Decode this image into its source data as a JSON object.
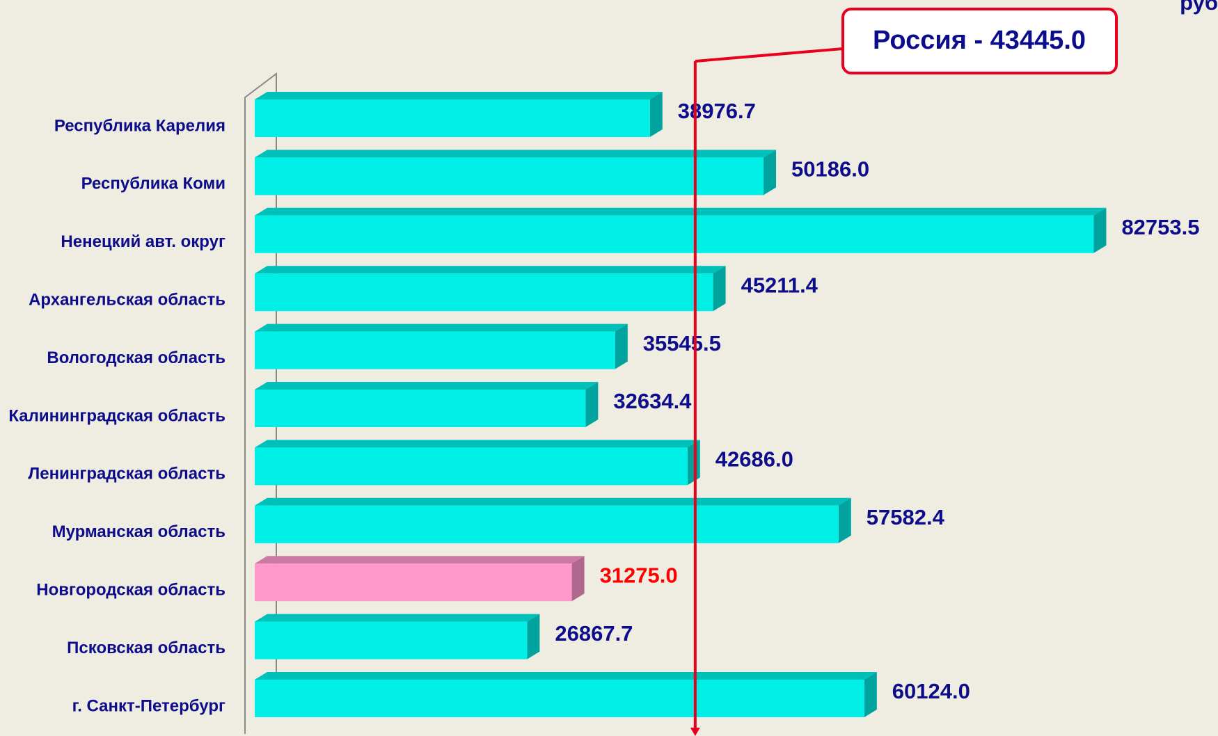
{
  "chart_data": {
    "type": "bar",
    "orientation": "horizontal",
    "unit": "руб",
    "categories": [
      "Республика Карелия",
      "Республика Коми",
      "Ненецкий авт. округ",
      "Архангельская область",
      "Вологодская область",
      "Калининградская область",
      "Ленинградская область",
      "Мурманская область",
      "Новгородская область",
      "Псковская область",
      "г. Санкт-Петербург"
    ],
    "values": [
      38976.7,
      50186.0,
      82753.5,
      45211.4,
      35545.5,
      32634.4,
      42686.0,
      57582.4,
      31275.0,
      26867.7,
      60124.0
    ],
    "value_labels": [
      "38976.7",
      "50186.0",
      "82753.5",
      "45211.4",
      "35545.5",
      "32634.4",
      "42686.0",
      "57582.4",
      "31275.0",
      "26867.7",
      "60124.0"
    ],
    "colors": [
      "#00f0e8",
      "#00f0e8",
      "#00f0e8",
      "#00f0e8",
      "#00f0e8",
      "#00f0e8",
      "#00f0e8",
      "#00f0e8",
      "#ff99cc",
      "#00f0e8",
      "#00f0e8"
    ],
    "label_colors": [
      "#0d0d8c",
      "#0d0d8c",
      "#0d0d8c",
      "#0d0d8c",
      "#0d0d8c",
      "#0d0d8c",
      "#0d0d8c",
      "#0d0d8c",
      "#ff0000",
      "#0d0d8c",
      "#0d0d8c"
    ],
    "reference": {
      "value": 43445.0,
      "label": "Россия - 43445.0",
      "color": "#e8001c"
    },
    "xlim": [
      0,
      90000
    ]
  }
}
